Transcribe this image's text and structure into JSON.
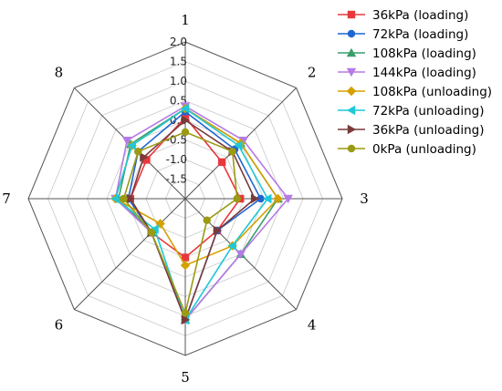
{
  "chart_data": {
    "type": "radar",
    "axes": [
      "1",
      "2",
      "3",
      "4",
      "5",
      "6",
      "7",
      "8"
    ],
    "rlim": [
      -2.0,
      2.0
    ],
    "r_ticks": [
      "2.0",
      "1.5",
      "1.0",
      "0.5",
      "0.0",
      "-0.5",
      "-1.0",
      "-1.5"
    ],
    "legend_position": "top-right",
    "series": [
      {
        "name": "36kPa (loading)",
        "color": "#e8383d",
        "marker": "square",
        "values": [
          0.08,
          -0.68,
          -0.6,
          -0.85,
          -0.5,
          -0.78,
          -0.6,
          -0.6
        ]
      },
      {
        "name": "72kPa (loading)",
        "color": "#1f66d1",
        "marker": "circle",
        "values": [
          0.22,
          -0.22,
          -0.08,
          -0.85,
          1.09,
          -0.78,
          -0.55,
          -0.3
        ]
      },
      {
        "name": "108kPa (loading)",
        "color": "#3a9e6a",
        "marker": "triangle-up",
        "values": [
          0.3,
          0.0,
          0.36,
          0.0,
          1.09,
          -0.78,
          -0.3,
          -0.03
        ]
      },
      {
        "name": "144kPa (loading)",
        "color": "#b57ae6",
        "marker": "triangle-down",
        "values": [
          0.36,
          0.1,
          0.62,
          0.0,
          1.09,
          -0.78,
          -0.22,
          0.1
        ]
      },
      {
        "name": "108kPa (unloading)",
        "color": "#d4a100",
        "marker": "diamond",
        "values": [
          0.3,
          0.0,
          0.36,
          -0.3,
          -0.3,
          -1.1,
          -0.22,
          -0.08
        ]
      },
      {
        "name": "72kPa (unloading)",
        "color": "#1ec8d6",
        "marker": "triangle-left",
        "values": [
          0.3,
          -0.08,
          0.1,
          -0.3,
          1.09,
          -0.9,
          -0.22,
          -0.08
        ]
      },
      {
        "name": "36kPa (unloading)",
        "color": "#7a3a3a",
        "marker": "triangle-right",
        "values": [
          0.0,
          -0.3,
          -0.23,
          -0.85,
          1.09,
          -0.78,
          -0.6,
          -0.5
        ]
      },
      {
        "name": "0kPa (unloading)",
        "color": "#9a9a14",
        "marker": "circle",
        "values": [
          -0.3,
          -0.3,
          -0.68,
          -1.22,
          0.92,
          -0.78,
          -0.43,
          -0.3
        ]
      }
    ]
  }
}
